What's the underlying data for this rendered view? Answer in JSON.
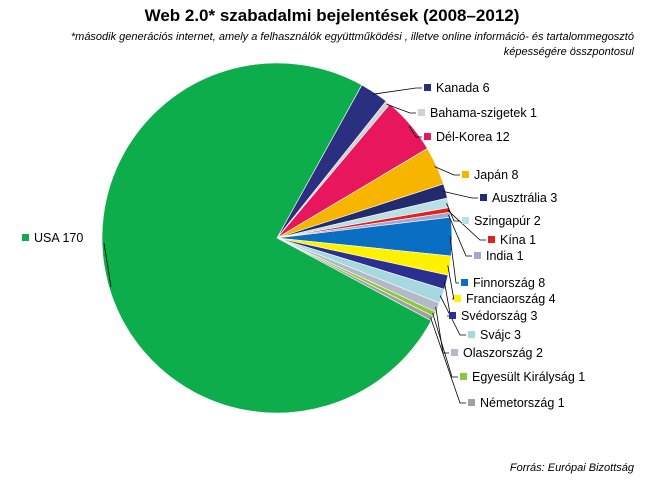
{
  "chart_data": {
    "type": "pie",
    "title": "Web 2.0* szabadalmi bejelentések (2008–2012)",
    "subtitle": "*második generációs internet, amely a felhasználók együttműködési , illetve online információ- és tartalommegosztó képességére összpontosul",
    "source": "Forrás: Európai Bizottság",
    "slices": [
      {
        "label": "Kanada",
        "value": 6,
        "color": "#2b2f7f"
      },
      {
        "label": "Bahama-szigetek",
        "value": 1,
        "color": "#d2d2d2"
      },
      {
        "label": "Dél-Korea",
        "value": 12,
        "color": "#e8175d"
      },
      {
        "label": "Japán",
        "value": 8,
        "color": "#f7b500"
      },
      {
        "label": "Ausztrália",
        "value": 3,
        "color": "#232a6e"
      },
      {
        "label": "Szingapúr",
        "value": 2,
        "color": "#b8e0e6"
      },
      {
        "label": "Kína",
        "value": 1,
        "color": "#e2231a"
      },
      {
        "label": "India",
        "value": 1,
        "color": "#a3a7d6"
      },
      {
        "label": "Finnország",
        "value": 8,
        "color": "#0a6fc2"
      },
      {
        "label": "Franciaország",
        "value": 4,
        "color": "#fff200"
      },
      {
        "label": "Svédország",
        "value": 3,
        "color": "#2b2f8f"
      },
      {
        "label": "Svájc",
        "value": 3,
        "color": "#a6d9df"
      },
      {
        "label": "Olaszország",
        "value": 2,
        "color": "#b4b8c8"
      },
      {
        "label": "Egyesült Királyság",
        "value": 1,
        "color": "#8dc63f"
      },
      {
        "label": "Németország",
        "value": 1,
        "color": "#a0a0a0"
      },
      {
        "label": "USA",
        "value": 170,
        "color": "#0ead4b"
      }
    ]
  }
}
